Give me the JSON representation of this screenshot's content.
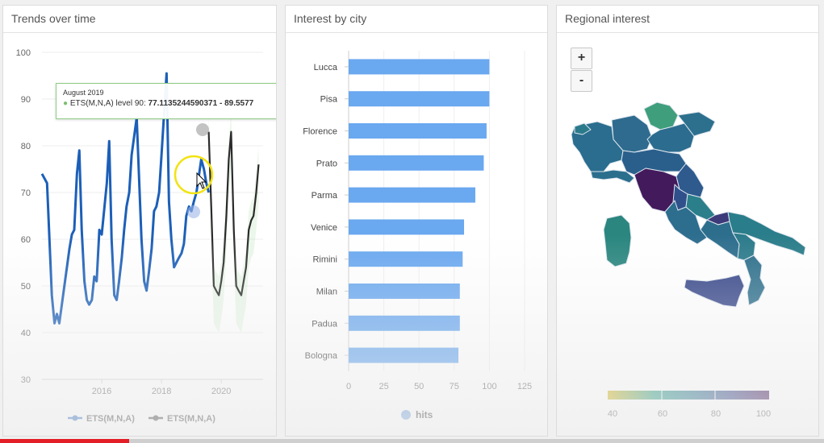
{
  "panels": {
    "trends_title": "Trends over time",
    "city_title": "Interest by city",
    "regional_title": "Regional interest"
  },
  "trend_chart": {
    "type": "line",
    "y_ticks": [
      "100",
      "90",
      "80",
      "70",
      "60",
      "50",
      "40",
      "30"
    ],
    "x_ticks": [
      "2016",
      "2018",
      "2020"
    ],
    "ylim": [
      30,
      100
    ],
    "xlim": [
      2014.0,
      2021.4
    ],
    "series": [
      {
        "name": "ETS(M,N,A)",
        "color": "#1c5fb8",
        "x": [
          2014.0,
          2014.17,
          2014.33,
          2014.42,
          2014.5,
          2014.58,
          2014.75,
          2014.92,
          2015.0,
          2015.08,
          2015.17,
          2015.25,
          2015.33,
          2015.42,
          2015.5,
          2015.58,
          2015.67,
          2015.75,
          2015.83,
          2015.92,
          2016.0,
          2016.17,
          2016.25,
          2016.33,
          2016.42,
          2016.5,
          2016.58,
          2016.67,
          2016.75,
          2016.83,
          2016.92,
          2017.0,
          2017.17,
          2017.25,
          2017.33,
          2017.42,
          2017.5,
          2017.58,
          2017.67,
          2017.75,
          2017.83,
          2017.92,
          2018.0,
          2018.17,
          2018.25,
          2018.33,
          2018.42,
          2018.5,
          2018.58,
          2018.67,
          2018.75,
          2018.83,
          2018.92,
          2019.0,
          2019.08,
          2019.17,
          2019.33,
          2019.42,
          2019.5,
          2019.58
        ],
        "y": [
          74,
          72,
          48,
          42,
          44,
          42,
          50,
          58,
          61,
          62,
          74,
          79,
          62,
          51,
          47,
          46,
          47,
          52,
          51,
          62,
          61,
          72,
          81,
          60,
          48,
          47,
          51,
          56,
          62,
          67,
          70,
          78,
          86,
          73,
          60,
          51,
          49,
          53,
          58,
          66,
          67,
          70,
          78,
          95.5,
          68,
          60,
          54,
          55,
          56,
          57,
          59,
          65,
          67,
          66,
          68,
          70,
          77.1,
          75,
          72,
          70
        ]
      },
      {
        "name": "ETS(M,N,A)",
        "color": "#2b2b2b",
        "x": [
          2019.58,
          2019.67,
          2019.75,
          2019.83,
          2019.92,
          2020.0,
          2020.08,
          2020.17,
          2020.25,
          2020.33,
          2020.42,
          2020.5,
          2020.58,
          2020.67,
          2020.75,
          2020.83,
          2020.92,
          2021.0,
          2021.08,
          2021.17,
          2021.25
        ],
        "y": [
          83,
          66,
          50,
          49,
          48,
          51,
          55,
          65,
          77,
          83,
          62,
          50,
          49,
          48,
          51,
          54,
          62,
          64,
          65,
          70,
          76
        ]
      }
    ],
    "legend": [
      "ETS(M,N,A)",
      "ETS(M,N,A)"
    ],
    "tooltip": {
      "title": "August 2019",
      "label": "ETS(M,N,A) level 90: ",
      "value": "77.1135244590371 - 89.5577"
    }
  },
  "city_chart": {
    "type": "bar",
    "categories": [
      "Lucca",
      "Pisa",
      "Florence",
      "Prato",
      "Parma",
      "Venice",
      "Rimini",
      "Milan",
      "Padua",
      "Bologna"
    ],
    "values": [
      100,
      100,
      98,
      96,
      90,
      82,
      81,
      79,
      79,
      78
    ],
    "x_ticks": [
      "0",
      "25",
      "50",
      "75",
      "100",
      "125"
    ],
    "xlim": [
      0,
      125
    ],
    "bar_color": "#6aa8f0",
    "legend": "hits"
  },
  "map": {
    "zoom_in": "+",
    "zoom_out": "-",
    "scale_ticks": [
      "40",
      "60",
      "80",
      "100"
    ],
    "scale_colors": [
      "#d4b51a",
      "#2a9c86",
      "#2d7390",
      "#3a4a8a",
      "#451a5c"
    ]
  },
  "progress": {
    "fraction": 0.157
  }
}
